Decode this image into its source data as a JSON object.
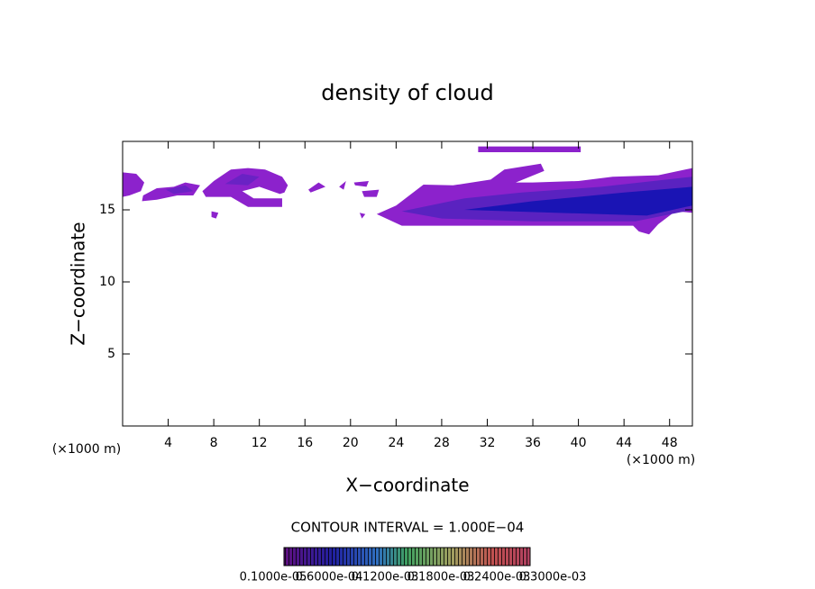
{
  "chart_data": {
    "type": "contour",
    "title": "density of cloud",
    "x_label": "X−coordinate",
    "y_label": "Z−coordinate",
    "x_unit_left": "(×1000 m)",
    "x_unit_right": "(×1000 m)",
    "contour_note": "CONTOUR INTERVAL = 1.000E−04",
    "xlim": [
      0,
      50
    ],
    "ylim": [
      0,
      19.75
    ],
    "xticks": [
      4,
      8,
      12,
      16,
      20,
      24,
      28,
      32,
      36,
      40,
      44,
      48
    ],
    "yticks": [
      5,
      10,
      15
    ],
    "colorbar_labels": [
      "0.1000e-05",
      "0.6000e-04",
      "0.1200e-03",
      "0.1800e-03",
      "0.2400e-03",
      "0.3000e-03"
    ],
    "regions": [
      {
        "color": "#8c22cc",
        "x": [
          0,
          1.2,
          1.9,
          1.6,
          0.6,
          0
        ],
        "z": [
          17.6,
          17.5,
          16.9,
          16.3,
          16.0,
          15.9
        ]
      },
      {
        "color": "#8c22cc",
        "x": [
          1.8,
          3.0,
          4.5,
          5.5,
          6.8,
          6.2,
          4.8,
          3.0,
          1.7
        ],
        "z": [
          16.0,
          16.5,
          16.6,
          16.9,
          16.7,
          16.0,
          16.0,
          15.7,
          15.6
        ]
      },
      {
        "color": "#6a22c4",
        "x": [
          3.8,
          5.5,
          6.2,
          4.5
        ],
        "z": [
          16.4,
          16.7,
          16.3,
          16.1
        ]
      },
      {
        "color": "#8c22cc",
        "x": [
          7.0,
          8.0,
          9.5,
          11.0,
          12.5,
          14.0,
          14.5,
          14.2,
          13.8,
          12.0,
          10.5,
          11.5,
          14.0,
          14.0,
          11.0,
          9.5,
          7.3
        ],
        "z": [
          16.3,
          17.0,
          17.8,
          17.9,
          17.8,
          17.3,
          16.7,
          16.2,
          16.1,
          16.6,
          16.3,
          15.8,
          15.8,
          15.2,
          15.2,
          15.9,
          15.9
        ]
      },
      {
        "color": "#6a22c4",
        "x": [
          9.0,
          10.5,
          12.0,
          11.0
        ],
        "z": [
          16.8,
          17.5,
          17.3,
          16.7
        ]
      },
      {
        "color": "#8c22cc",
        "x": [
          7.8,
          8.4,
          8.2,
          7.8
        ],
        "z": [
          14.9,
          14.8,
          14.4,
          14.5
        ]
      },
      {
        "color": "#8c22cc",
        "x": [
          16.3,
          17.2,
          17.8,
          16.5
        ],
        "z": [
          16.4,
          16.9,
          16.6,
          16.2
        ]
      },
      {
        "color": "#8c22cc",
        "x": [
          19.0,
          19.6,
          19.4
        ],
        "z": [
          16.6,
          17.0,
          16.4
        ]
      },
      {
        "color": "#8c22cc",
        "x": [
          20.3,
          21.6,
          21.4,
          20.4
        ],
        "z": [
          16.9,
          17.0,
          16.6,
          16.7
        ]
      },
      {
        "color": "#8c22cc",
        "x": [
          21.0,
          22.5,
          22.3,
          21.2
        ],
        "z": [
          16.3,
          16.4,
          15.9,
          15.9
        ]
      },
      {
        "color": "#8c22cc",
        "x": [
          20.8,
          21.3,
          21.0
        ],
        "z": [
          14.8,
          14.7,
          14.4
        ]
      },
      {
        "color": "#8c22cc",
        "x": [
          31.2,
          40.2,
          40.2,
          31.2
        ],
        "z": [
          19.4,
          19.4,
          19.0,
          19.0
        ]
      },
      {
        "color": "#8c22cc",
        "x": [
          22.3,
          24.0,
          26.4,
          29.0,
          32.3,
          33.5,
          36.7,
          37.0,
          34.5,
          36.0,
          40.0,
          43.0,
          47.0,
          50,
          50,
          48.5,
          47.0,
          46.2,
          45.3,
          44.8,
          40.0,
          32.0,
          24.5
        ],
        "z": [
          14.7,
          15.3,
          16.75,
          16.7,
          17.1,
          17.8,
          18.2,
          17.7,
          16.9,
          16.9,
          17.0,
          17.3,
          17.4,
          17.9,
          14.8,
          14.9,
          14.0,
          13.3,
          13.5,
          13.9,
          13.9,
          13.9,
          13.9
        ]
      },
      {
        "color": "#5a22c0",
        "x": [
          24.5,
          30.0,
          35.0,
          42.0,
          50,
          50,
          45.0,
          36.0,
          28.0
        ],
        "z": [
          14.9,
          15.8,
          16.2,
          16.6,
          17.3,
          15.0,
          14.2,
          14.2,
          14.4
        ]
      },
      {
        "color": "#1a14b4",
        "x": [
          30.0,
          36.0,
          44.0,
          50,
          50,
          46.0,
          38.0
        ],
        "z": [
          15.0,
          15.6,
          16.2,
          16.6,
          15.3,
          14.6,
          14.8
        ]
      }
    ]
  }
}
